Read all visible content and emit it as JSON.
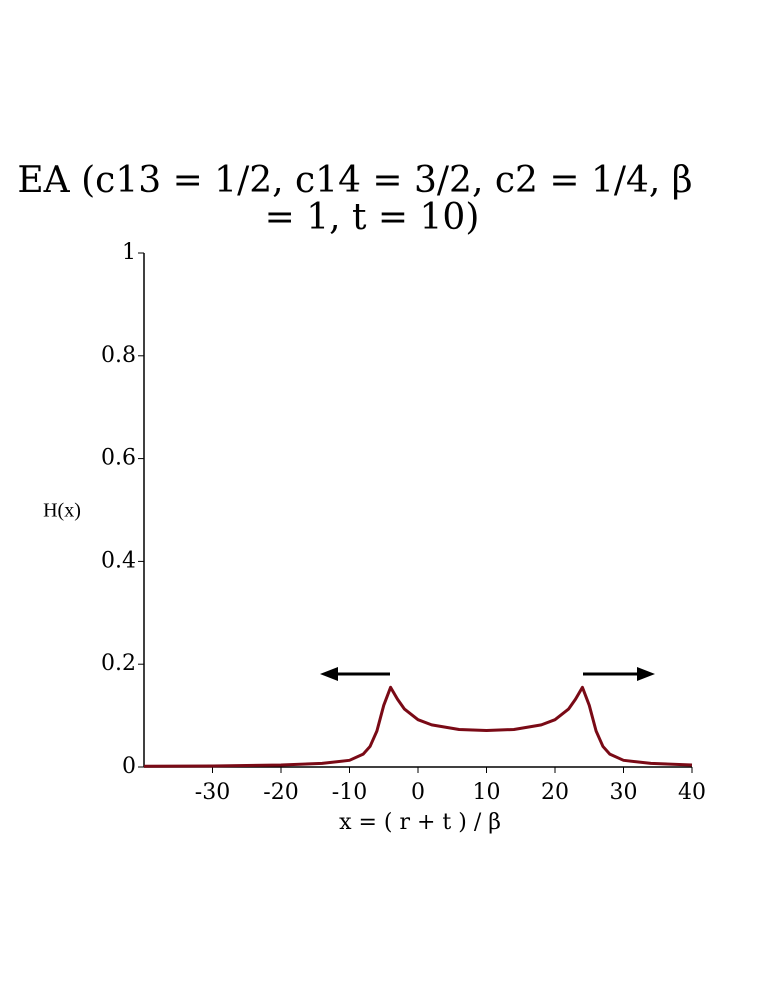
{
  "chart_data": {
    "type": "line",
    "title": [
      "EA (c13 = 1/2,  c14 = 3/2,  c2 = 1/4, β",
      "= 1,  t = 10)"
    ],
    "x_label": "x = ( r + t ) / β",
    "y_label": "H(x)",
    "x": [
      -40,
      -30,
      -20,
      -14,
      -10,
      -8,
      -7,
      -6,
      -5,
      -4,
      -3,
      -2,
      0,
      2,
      6,
      10,
      14,
      18,
      20,
      22,
      23,
      24,
      25,
      26,
      27,
      28,
      30,
      34,
      40
    ],
    "series": [
      {
        "color": "#7a0a16",
        "values": [
          0.0015,
          0.002,
          0.004,
          0.007,
          0.013,
          0.025,
          0.04,
          0.07,
          0.12,
          0.155,
          0.132,
          0.113,
          0.092,
          0.082,
          0.073,
          0.071,
          0.073,
          0.082,
          0.092,
          0.113,
          0.132,
          0.155,
          0.12,
          0.07,
          0.04,
          0.025,
          0.013,
          0.007,
          0.004
        ]
      }
    ],
    "xlim": [
      -40,
      40
    ],
    "xticks": [
      -30,
      -20,
      -10,
      0,
      10,
      20,
      30,
      40
    ],
    "ylim": [
      0,
      1
    ],
    "yticks": [
      0,
      0.2,
      0.4,
      0.6,
      0.8,
      1
    ]
  }
}
